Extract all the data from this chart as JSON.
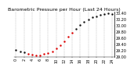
{
  "title": "Barometric Pressure per Hour (Last 24 Hours)",
  "ylim": [
    29.0,
    30.45
  ],
  "xlim": [
    -0.5,
    24.5
  ],
  "background_color": "#ffffff",
  "grid_color": "#aaaaaa",
  "hours": [
    0,
    1,
    2,
    3,
    4,
    5,
    6,
    7,
    8,
    9,
    10,
    11,
    12,
    13,
    14,
    15,
    16,
    17,
    18,
    19,
    20,
    21,
    22,
    23,
    24
  ],
  "pressure": [
    29.22,
    29.18,
    29.14,
    29.1,
    29.07,
    29.05,
    29.03,
    29.08,
    29.12,
    29.18,
    29.28,
    29.38,
    29.5,
    29.65,
    29.78,
    29.9,
    30.02,
    30.12,
    30.2,
    30.27,
    30.3,
    30.35,
    30.38,
    30.4,
    30.38
  ],
  "red_indices": [
    3,
    4,
    5,
    6,
    7,
    8,
    9,
    10,
    11,
    12,
    13,
    14
  ],
  "dot_color_black": "#111111",
  "dot_color_red": "#dd0000",
  "title_fontsize": 4.5,
  "tick_fontsize": 3.5,
  "ylabel_fontsize": 3.5,
  "ytick_labels": [
    "30.40",
    "30.20",
    "30.00",
    "29.80",
    "29.60",
    "29.40",
    "29.20",
    "29.00"
  ],
  "ytick_vals": [
    30.4,
    30.2,
    30.0,
    29.8,
    29.6,
    29.4,
    29.2,
    29.0
  ],
  "xtick_pos": [
    0,
    2,
    4,
    6,
    8,
    10,
    12,
    14,
    16,
    18,
    20,
    22,
    24
  ],
  "xtick_labels": [
    "0",
    "2",
    "4",
    "6",
    "8",
    "10",
    "12",
    "14",
    "16",
    "18",
    "20",
    "22",
    "24"
  ]
}
